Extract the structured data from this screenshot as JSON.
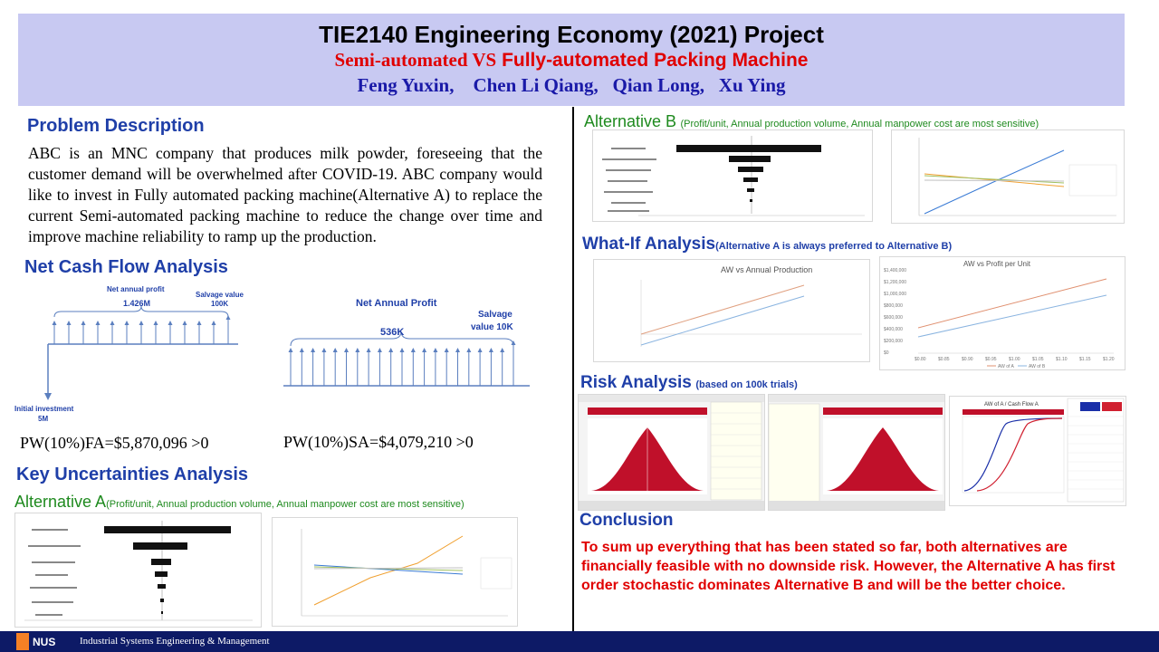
{
  "header": {
    "title": "TIE2140 Engineering Economy (2021) Project",
    "subtitle_a": "Semi-automated VS",
    "subtitle_b": "Fully-automated Packing Machine",
    "authors": "Feng Yuxin,    Chen Li Qiang,   Qian Long,   Xu Ying"
  },
  "problem": {
    "heading": "Problem Description",
    "text": "ABC is an MNC company that produces milk powder, foreseeing that the customer demand will be overwhelmed after COVID-19. ABC company would like to invest in Fully automated packing machine(Alternative A) to replace the current Semi-automated packing machine to reduce the change over time and improve machine reliability to ramp up the production."
  },
  "cashflow": {
    "heading": "Net Cash Flow Analysis",
    "a": {
      "annual_label": "Net annual profit",
      "annual_value": "1.426M",
      "salvage_label": "Salvage value",
      "salvage_value": "100K",
      "initial_label": "Initial investment",
      "initial_value": "5M",
      "pw": "PW(10%)FA=$5,870,096 >0"
    },
    "b": {
      "annual_label": "Net Annual Profit",
      "annual_value": "536K",
      "salvage_label": "Salvage",
      "salvage_value": "value 10K",
      "pw": "PW(10%)SA=$4,079,210 >0"
    }
  },
  "uncertainty": {
    "heading": "Key Uncertainties Analysis",
    "alt_a_label": "Alternative A",
    "alt_a_note": "(Profit/unit, Annual production volume, Annual manpower cost are most sensitive)",
    "alt_b_label": "Alternative B",
    "alt_b_note": "(Profit/unit, Annual production volume, Annual manpower cost are most sensitive)"
  },
  "whatif": {
    "heading": "What-If Analysis",
    "note": "(Alternative  A is always preferred to Alternative B)",
    "chart1_title": "AW vs Annual Production",
    "chart2_title": "AW vs Profit per Unit",
    "chart2_yticks": [
      "$1,400,000",
      "$1,200,000",
      "$1,000,000",
      "$800,000",
      "$600,000",
      "$400,000",
      "$200,000",
      "$0"
    ],
    "chart2_xticks": [
      "$0.80",
      "$0.85",
      "$0.90",
      "$0.95",
      "$1.00",
      "$1.05",
      "$1.10",
      "$1.15",
      "$1.20"
    ],
    "chart2_legend": [
      "AW of A",
      "AW of B"
    ]
  },
  "risk": {
    "heading": "Risk Analysis",
    "note": "(based on 100k trials)",
    "chart3_title": "AW of A / Cash Flow A"
  },
  "conclusion": {
    "heading": "Conclusion",
    "text": "To sum up everything that has been stated so far, both alternatives are financially feasible with no downside risk. However, the Alternative A has first order stochastic dominates Alternative B and will be the better choice."
  },
  "footer": {
    "logo": "NUS",
    "text": "Industrial Systems Engineering & Management"
  },
  "colors": {
    "header_bg": "#c8c9f2",
    "heading_blue": "#1f3fa8",
    "accent_red": "#e00000",
    "footer_bg": "#0d1a66"
  }
}
